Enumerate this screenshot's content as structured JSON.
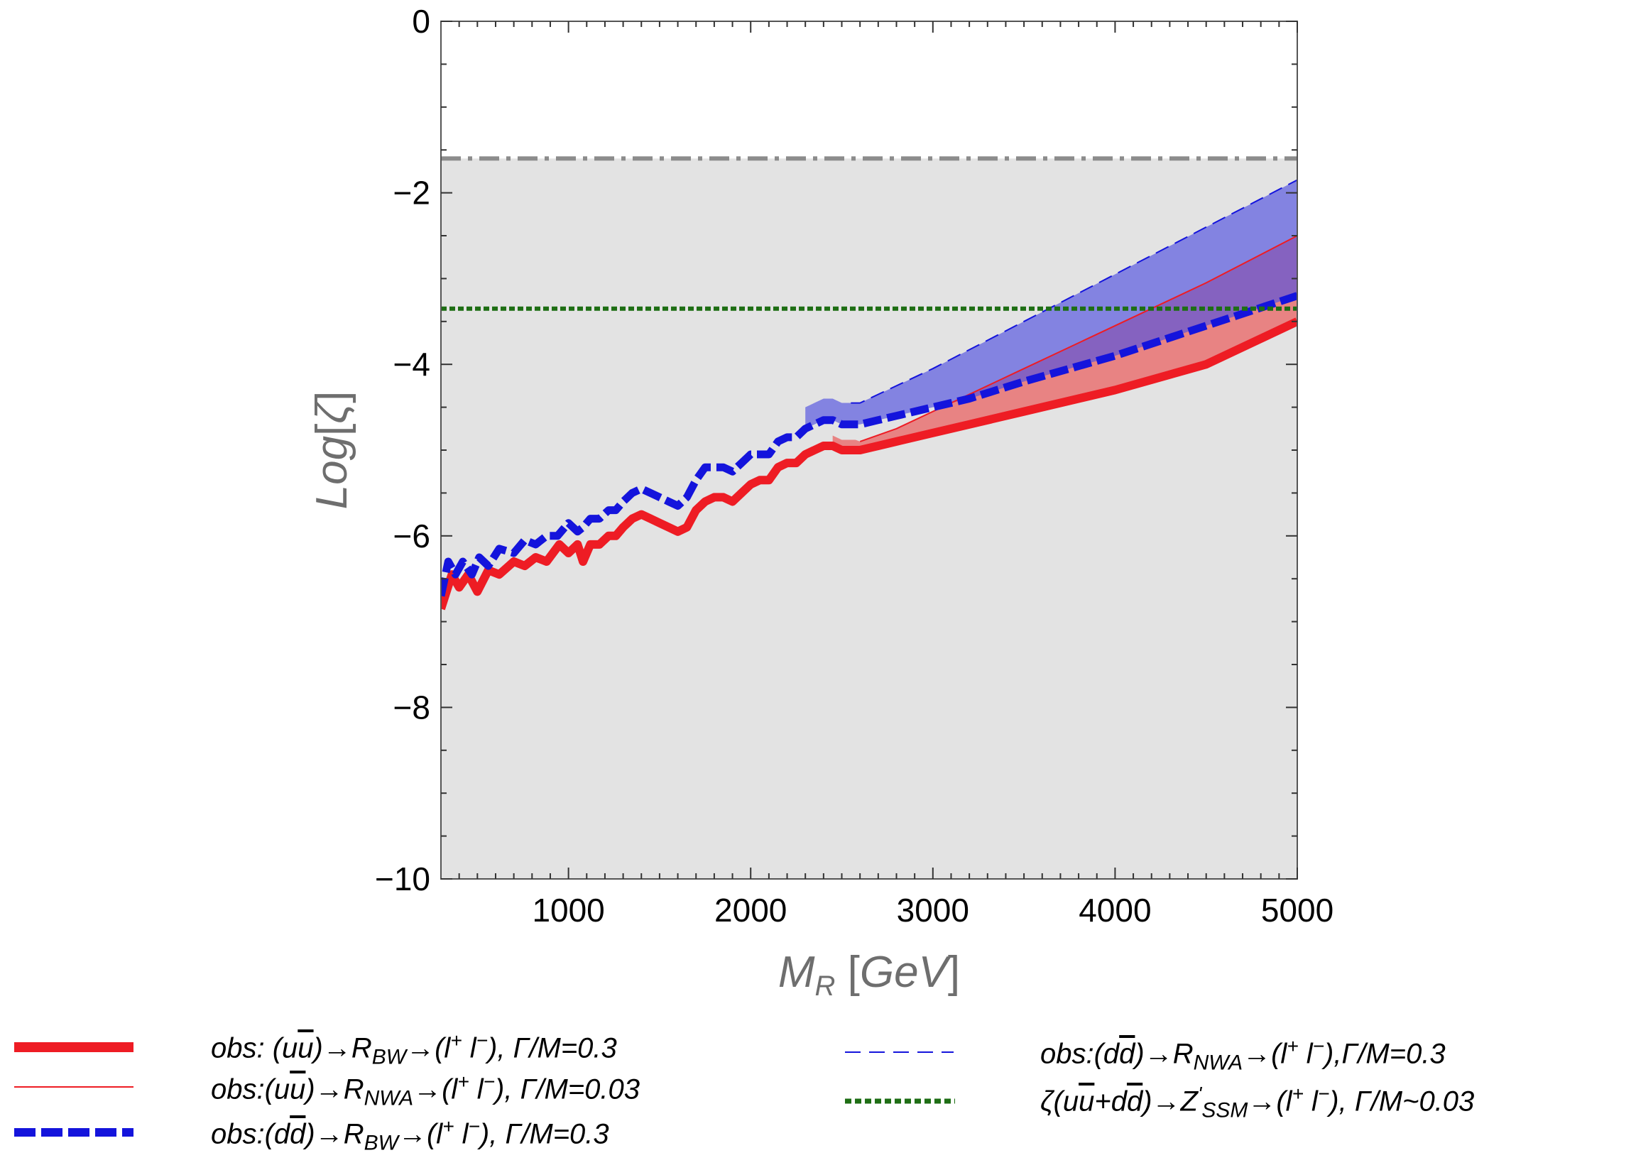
{
  "chart_data": {
    "type": "line",
    "xlabel": "M_R [GeV]",
    "ylabel": "Log[ζ]",
    "xlim": [
      300,
      5000
    ],
    "ylim": [
      -10,
      0
    ],
    "xticks": [
      "1000",
      "2000",
      "3000",
      "4000",
      "5000"
    ],
    "yticks": [
      "0",
      "−2",
      "−4",
      "−6",
      "−8",
      "−10"
    ],
    "excluded_region": {
      "y_max": -1.6,
      "color": "#e3e3e3"
    },
    "reference_line": {
      "y": -1.6,
      "style": "dash-dot",
      "color": "#8c8c8c"
    },
    "series": [
      {
        "name": "obs: (uū)→R_BW→(l⁺ l⁻), Γ/M=0.3",
        "color": "#ee1c24",
        "style": "thick-solid",
        "x": [
          300,
          360,
          400,
          450,
          500,
          560,
          620,
          700,
          760,
          820,
          880,
          950,
          1000,
          1050,
          1080,
          1120,
          1170,
          1220,
          1260,
          1300,
          1350,
          1400,
          1450,
          1500,
          1550,
          1600,
          1650,
          1700,
          1750,
          1800,
          1850,
          1900,
          1950,
          2000,
          2050,
          2100,
          2150,
          2200,
          2250,
          2300,
          2350,
          2400,
          2450,
          2500,
          2550,
          2600,
          2700,
          2800,
          3000,
          3200,
          3500,
          4000,
          4500,
          5000
        ],
        "y": [
          -6.85,
          -6.45,
          -6.6,
          -6.45,
          -6.65,
          -6.4,
          -6.45,
          -6.3,
          -6.35,
          -6.25,
          -6.3,
          -6.1,
          -6.2,
          -6.1,
          -6.3,
          -6.1,
          -6.1,
          -6.0,
          -6.0,
          -5.9,
          -5.8,
          -5.75,
          -5.8,
          -5.85,
          -5.9,
          -5.95,
          -5.9,
          -5.7,
          -5.6,
          -5.55,
          -5.55,
          -5.6,
          -5.5,
          -5.4,
          -5.35,
          -5.35,
          -5.2,
          -5.15,
          -5.15,
          -5.05,
          -5.0,
          -4.95,
          -4.95,
          -5.0,
          -5.0,
          -5.0,
          -4.95,
          -4.9,
          -4.8,
          -4.7,
          -4.55,
          -4.3,
          -4.0,
          -3.5
        ]
      },
      {
        "name": "obs:(uū)→R_NWA→(l⁺ l⁻), Γ/M=0.03",
        "color": "#ee1c24",
        "style": "thin-solid",
        "x": [
          2600,
          2800,
          3000,
          3500,
          4000,
          4500,
          5000
        ],
        "y": [
          -4.9,
          -4.75,
          -4.55,
          -4.05,
          -3.55,
          -3.05,
          -2.5
        ]
      },
      {
        "name": "obs:(dd̄)→R_BW→(l⁺ l⁻), Γ/M=0.3",
        "color": "#1414dc",
        "style": "thick-dashed",
        "x": [
          300,
          340,
          380,
          420,
          470,
          510,
          560,
          620,
          700,
          760,
          820,
          880,
          940,
          1000,
          1050,
          1080,
          1120,
          1170,
          1220,
          1260,
          1300,
          1350,
          1400,
          1450,
          1500,
          1550,
          1600,
          1650,
          1700,
          1750,
          1800,
          1850,
          1900,
          1950,
          2000,
          2050,
          2100,
          2150,
          2200,
          2250,
          2300,
          2350,
          2400,
          2450,
          2500,
          2550,
          2600,
          2700,
          2800,
          3000,
          3200,
          3500,
          4000,
          4500,
          5000
        ],
        "y": [
          -6.7,
          -6.3,
          -6.45,
          -6.3,
          -6.45,
          -6.25,
          -6.35,
          -6.15,
          -6.2,
          -6.05,
          -6.1,
          -6.0,
          -6.0,
          -5.85,
          -5.95,
          -5.9,
          -5.8,
          -5.8,
          -5.7,
          -5.7,
          -5.6,
          -5.5,
          -5.45,
          -5.5,
          -5.55,
          -5.6,
          -5.65,
          -5.55,
          -5.35,
          -5.2,
          -5.2,
          -5.2,
          -5.25,
          -5.15,
          -5.05,
          -5.05,
          -5.05,
          -4.9,
          -4.85,
          -4.85,
          -4.75,
          -4.7,
          -4.65,
          -4.65,
          -4.7,
          -4.7,
          -4.7,
          -4.65,
          -4.6,
          -4.5,
          -4.4,
          -4.2,
          -3.9,
          -3.55,
          -3.2
        ]
      },
      {
        "name": "obs:(dd̄)→R_NWA→(l⁺ l⁻),Γ/M=0.3",
        "color": "#1414dc",
        "style": "thin-dashed",
        "x": [
          2550,
          2600,
          2700,
          2800,
          3000,
          3500,
          4000,
          4500,
          5000
        ],
        "y": [
          -4.45,
          -4.45,
          -4.35,
          -4.25,
          -4.05,
          -3.5,
          -2.95,
          -2.4,
          -1.85
        ]
      },
      {
        "name": "ζ(uū+dd̄)→Z'_SSM→(l⁺ l⁻), Γ/M~0.03",
        "color": "#1e6e14",
        "style": "dotted",
        "x": [
          300,
          5000
        ],
        "y": [
          -3.35,
          -3.35
        ]
      }
    ],
    "legend": {
      "placement": "bottom",
      "entries": [
        {
          "pre": "obs: (u",
          "bar": "u",
          "mid": ")→R",
          "sub": "BW",
          "post1": "→(l",
          "sup": "+",
          "post2": " l",
          "sup2": "−",
          "end": "), Γ/M=0.3"
        },
        {
          "pre": "obs:(u",
          "bar": "u",
          "mid": ")→R",
          "sub": "NWA",
          "post1": "→(l",
          "sup": "+",
          "post2": " l",
          "sup2": "−",
          "end": "), Γ/M=0.03"
        },
        {
          "pre": "obs:(d",
          "bar": "d",
          "mid": ")→R",
          "sub": "BW",
          "post1": "→(l",
          "sup": "+",
          "post2": " l",
          "sup2": "−",
          "end": "), Γ/M=0.3"
        },
        {
          "pre": "obs:(d",
          "bar": "d",
          "mid": ")→R",
          "sub": "NWA",
          "post1": "→(l",
          "sup": "+",
          "post2": " l",
          "sup2": "−",
          "end": "),Γ/M=0.3"
        },
        {
          "pre": "ζ(u",
          "bar": "u",
          "mid": "+d",
          "bar2": "d",
          "mid2": ")→Z",
          "supsub_sup": "'",
          "sub": "SSM",
          "post1": "→(l",
          "sup": "+",
          "post2": " l",
          "sup2": "−",
          "end": "), Γ/M~0.03"
        }
      ]
    }
  }
}
